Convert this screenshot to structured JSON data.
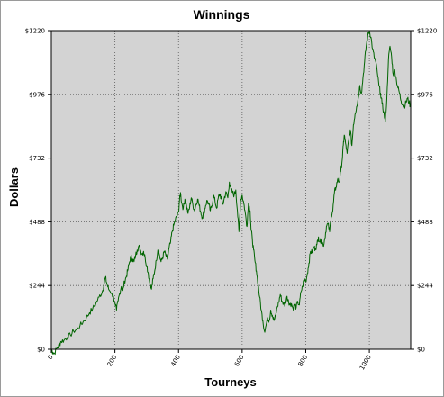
{
  "chart_data": {
    "type": "line",
    "title": "Winnings",
    "xlabel": "Tourneys",
    "ylabel": "Dollars",
    "xlim": [
      0,
      1130
    ],
    "ylim": [
      0,
      1220
    ],
    "y_ticks": [
      0,
      244,
      488,
      732,
      976,
      1220
    ],
    "y_tick_labels": [
      "$0",
      "$244",
      "$488",
      "$732",
      "$976",
      "$1220"
    ],
    "x_ticks": [
      0,
      200,
      400,
      600,
      800,
      1000
    ],
    "x_tick_labels": [
      "0",
      "200",
      "400",
      "600",
      "800",
      "1000"
    ],
    "grid": true,
    "colors": {
      "line": "#006400",
      "plot_bg": "#d3d3d3",
      "grid": "#5a5a5a"
    },
    "series": [
      {
        "values_xy": [
          [
            0,
            0
          ],
          [
            5,
            -12
          ],
          [
            10,
            -15
          ],
          [
            18,
            5
          ],
          [
            25,
            15
          ],
          [
            30,
            30
          ],
          [
            40,
            35
          ],
          [
            50,
            45
          ],
          [
            60,
            55
          ],
          [
            70,
            70
          ],
          [
            80,
            75
          ],
          [
            90,
            90
          ],
          [
            100,
            105
          ],
          [
            110,
            120
          ],
          [
            120,
            140
          ],
          [
            130,
            155
          ],
          [
            140,
            175
          ],
          [
            150,
            200
          ],
          [
            160,
            220
          ],
          [
            165,
            245
          ],
          [
            170,
            275
          ],
          [
            175,
            250
          ],
          [
            180,
            230
          ],
          [
            190,
            215
          ],
          [
            200,
            180
          ],
          [
            205,
            150
          ],
          [
            210,
            185
          ],
          [
            215,
            215
          ],
          [
            220,
            240
          ],
          [
            225,
            225
          ],
          [
            230,
            260
          ],
          [
            235,
            275
          ],
          [
            240,
            300
          ],
          [
            245,
            330
          ],
          [
            250,
            355
          ],
          [
            255,
            345
          ],
          [
            260,
            335
          ],
          [
            265,
            360
          ],
          [
            270,
            380
          ],
          [
            275,
            395
          ],
          [
            280,
            380
          ],
          [
            285,
            365
          ],
          [
            290,
            375
          ],
          [
            295,
            350
          ],
          [
            300,
            320
          ],
          [
            305,
            290
          ],
          [
            310,
            250
          ],
          [
            315,
            230
          ],
          [
            320,
            270
          ],
          [
            325,
            300
          ],
          [
            330,
            340
          ],
          [
            335,
            380
          ],
          [
            340,
            360
          ],
          [
            345,
            335
          ],
          [
            350,
            350
          ],
          [
            355,
            375
          ],
          [
            360,
            360
          ],
          [
            365,
            345
          ],
          [
            370,
            385
          ],
          [
            375,
            410
          ],
          [
            380,
            450
          ],
          [
            385,
            475
          ],
          [
            390,
            495
          ],
          [
            395,
            510
          ],
          [
            400,
            525
          ],
          [
            403,
            570
          ],
          [
            406,
            600
          ],
          [
            410,
            560
          ],
          [
            415,
            540
          ],
          [
            420,
            575
          ],
          [
            425,
            550
          ],
          [
            430,
            520
          ],
          [
            435,
            545
          ],
          [
            440,
            580
          ],
          [
            445,
            555
          ],
          [
            450,
            530
          ],
          [
            455,
            555
          ],
          [
            460,
            575
          ],
          [
            465,
            550
          ],
          [
            470,
            525
          ],
          [
            475,
            505
          ],
          [
            480,
            525
          ],
          [
            485,
            550
          ],
          [
            490,
            570
          ],
          [
            495,
            555
          ],
          [
            500,
            530
          ],
          [
            505,
            550
          ],
          [
            510,
            590
          ],
          [
            515,
            565
          ],
          [
            520,
            540
          ],
          [
            525,
            580
          ],
          [
            530,
            595
          ],
          [
            535,
            575
          ],
          [
            540,
            555
          ],
          [
            545,
            585
          ],
          [
            550,
            600
          ],
          [
            555,
            580
          ],
          [
            560,
            640
          ],
          [
            565,
            610
          ],
          [
            570,
            600
          ],
          [
            575,
            590
          ],
          [
            580,
            610
          ],
          [
            585,
            530
          ],
          [
            590,
            450
          ],
          [
            595,
            570
          ],
          [
            600,
            590
          ],
          [
            605,
            560
          ],
          [
            610,
            520
          ],
          [
            615,
            470
          ],
          [
            620,
            560
          ],
          [
            625,
            530
          ],
          [
            628,
            460
          ],
          [
            632,
            420
          ],
          [
            636,
            380
          ],
          [
            640,
            340
          ],
          [
            645,
            300
          ],
          [
            650,
            250
          ],
          [
            655,
            200
          ],
          [
            660,
            150
          ],
          [
            665,
            110
          ],
          [
            670,
            70
          ],
          [
            675,
            90
          ],
          [
            680,
            120
          ],
          [
            685,
            110
          ],
          [
            690,
            150
          ],
          [
            695,
            130
          ],
          [
            700,
            110
          ],
          [
            705,
            125
          ],
          [
            710,
            160
          ],
          [
            715,
            180
          ],
          [
            720,
            210
          ],
          [
            725,
            185
          ],
          [
            730,
            175
          ],
          [
            735,
            170
          ],
          [
            740,
            200
          ],
          [
            745,
            190
          ],
          [
            750,
            170
          ],
          [
            755,
            175
          ],
          [
            760,
            155
          ],
          [
            765,
            170
          ],
          [
            770,
            160
          ],
          [
            775,
            180
          ],
          [
            780,
            170
          ],
          [
            785,
            220
          ],
          [
            790,
            240
          ],
          [
            795,
            270
          ],
          [
            800,
            260
          ],
          [
            805,
            290
          ],
          [
            810,
            330
          ],
          [
            815,
            375
          ],
          [
            820,
            370
          ],
          [
            825,
            390
          ],
          [
            830,
            385
          ],
          [
            835,
            400
          ],
          [
            840,
            430
          ],
          [
            845,
            410
          ],
          [
            850,
            420
          ],
          [
            855,
            395
          ],
          [
            860,
            425
          ],
          [
            865,
            470
          ],
          [
            870,
            480
          ],
          [
            875,
            450
          ],
          [
            880,
            510
          ],
          [
            885,
            530
          ],
          [
            890,
            600
          ],
          [
            895,
            620
          ],
          [
            900,
            650
          ],
          [
            905,
            640
          ],
          [
            910,
            680
          ],
          [
            915,
            730
          ],
          [
            918,
            780
          ],
          [
            921,
            820
          ],
          [
            925,
            790
          ],
          [
            930,
            750
          ],
          [
            935,
            800
          ],
          [
            940,
            840
          ],
          [
            945,
            780
          ],
          [
            950,
            860
          ],
          [
            955,
            900
          ],
          [
            960,
            930
          ],
          [
            965,
            960
          ],
          [
            970,
            1010
          ],
          [
            975,
            980
          ],
          [
            980,
            1040
          ],
          [
            985,
            1100
          ],
          [
            990,
            1160
          ],
          [
            995,
            1200
          ],
          [
            1000,
            1220
          ],
          [
            1005,
            1195
          ],
          [
            1010,
            1150
          ],
          [
            1015,
            1120
          ],
          [
            1020,
            1100
          ],
          [
            1025,
            1060
          ],
          [
            1030,
            1010
          ],
          [
            1035,
            980
          ],
          [
            1040,
            940
          ],
          [
            1045,
            910
          ],
          [
            1050,
            870
          ],
          [
            1055,
            960
          ],
          [
            1060,
            1110
          ],
          [
            1065,
            1160
          ],
          [
            1070,
            1120
          ],
          [
            1075,
            1050
          ],
          [
            1080,
            1070
          ],
          [
            1085,
            1030
          ],
          [
            1090,
            1000
          ],
          [
            1095,
            980
          ],
          [
            1100,
            950
          ],
          [
            1105,
            940
          ],
          [
            1110,
            930
          ],
          [
            1115,
            945
          ],
          [
            1120,
            960
          ],
          [
            1125,
            945
          ],
          [
            1130,
            930
          ]
        ]
      }
    ]
  }
}
